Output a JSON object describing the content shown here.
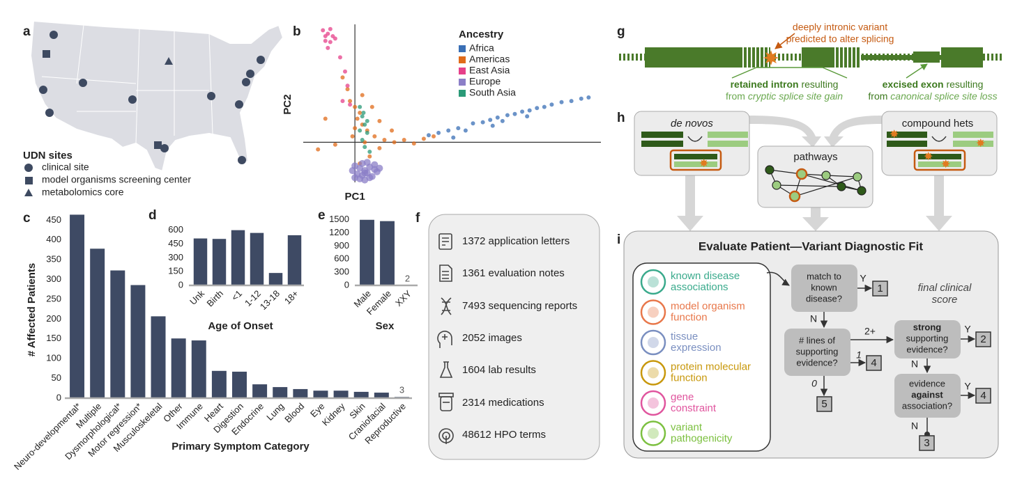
{
  "panels": [
    "a",
    "b",
    "c",
    "d",
    "e",
    "f",
    "g",
    "h",
    "i"
  ],
  "map": {
    "legend_title": "UDN sites",
    "legend": [
      "clinical site",
      "model organisms screening center",
      "metabolomics core"
    ]
  },
  "chart_data": [
    {
      "type": "scatter",
      "x_label": "PC1",
      "y_label": "PC2",
      "legend_title": "Ancestry",
      "xlim": [
        -0.21,
        1.0
      ],
      "ylim": [
        -0.34,
        1.0
      ],
      "series": [
        {
          "name": "Africa",
          "color": "#3a6fb5",
          "x": [
            0.3,
            0.34,
            0.38,
            0.4,
            0.42,
            0.45,
            0.48,
            0.52,
            0.55,
            0.56,
            0.58,
            0.6,
            0.62,
            0.65,
            0.68,
            0.7,
            0.71,
            0.74,
            0.77,
            0.8,
            0.84,
            0.88,
            0.92,
            0.95
          ],
          "values": [
            0.06,
            0.08,
            0.1,
            0.04,
            0.12,
            0.1,
            0.16,
            0.17,
            0.19,
            0.14,
            0.21,
            0.18,
            0.23,
            0.24,
            0.26,
            0.22,
            0.27,
            0.29,
            0.3,
            0.32,
            0.34,
            0.35,
            0.37,
            0.38
          ]
        },
        {
          "name": "Americas",
          "color": "#e06b1a",
          "x": [
            -0.05,
            -0.03,
            -0.02,
            0.0,
            0.02,
            0.01,
            0.03,
            0.05,
            -0.01,
            0.04,
            0.08,
            0.12,
            0.16,
            0.2,
            0.24,
            0.28,
            0.1,
            0.06,
            0.02,
            -0.08,
            -0.12,
            0.07,
            0.1,
            0.15,
            0.0,
            0.03,
            0.32,
            -0.15
          ],
          "values": [
            0.55,
            0.45,
            0.35,
            0.3,
            0.25,
            0.2,
            0.15,
            0.1,
            0.05,
            0.0,
            0.05,
            0.02,
            0.0,
            0.02,
            -0.01,
            0.03,
            -0.05,
            -0.12,
            -0.18,
            -0.02,
            0.2,
            0.3,
            0.18,
            0.1,
            0.12,
            0.4,
            0.05,
            -0.06
          ]
        },
        {
          "name": "East Asia",
          "color": "#e6408a",
          "x": [
            -0.13,
            -0.12,
            -0.11,
            -0.1,
            -0.09,
            -0.12,
            -0.1,
            -0.08,
            -0.11,
            -0.06,
            -0.04,
            -0.03,
            -0.05,
            -0.02
          ],
          "values": [
            0.95,
            0.9,
            0.92,
            0.96,
            0.9,
            0.86,
            0.85,
            0.88,
            0.8,
            0.72,
            0.6,
            0.48,
            0.35,
            0.32
          ]
        },
        {
          "name": "Europe",
          "color": "#8b7fc7",
          "x": [
            0.0,
            0.02,
            0.04,
            0.06,
            0.08,
            0.01,
            0.03,
            0.05,
            0.07,
            0.09,
            0.02,
            0.04,
            0.06,
            0.03,
            0.05,
            0.0,
            0.08,
            0.1,
            -0.01,
            0.04
          ],
          "values": [
            -0.2,
            -0.22,
            -0.24,
            -0.21,
            -0.23,
            -0.27,
            -0.28,
            -0.26,
            -0.29,
            -0.25,
            -0.31,
            -0.32,
            -0.3,
            -0.18,
            -0.17,
            -0.3,
            -0.19,
            -0.22,
            -0.24,
            -0.26
          ]
        },
        {
          "name": "South Asia",
          "color": "#2b9a78",
          "x": [
            0.02,
            0.03,
            0.04,
            0.05,
            0.03,
            0.04,
            0.02,
            0.05,
            0.06,
            0.035
          ],
          "values": [
            0.3,
            0.22,
            0.15,
            0.08,
            0.02,
            -0.04,
            0.1,
            0.18,
            -0.08,
            0.25
          ]
        }
      ]
    },
    {
      "type": "bar",
      "x_label": "Primary Symptom Category",
      "y_label": "# Affected Patients",
      "color": "#3e4a64",
      "categories": [
        "Neuro-developmental*",
        "Multiple",
        "Dysmorphological*",
        "Motor regression*",
        "Musculoskeletal",
        "Other",
        "Immune",
        "Heart",
        "Digestion",
        "Endocrine",
        "Lung",
        "Blood",
        "Eye",
        "Kidney",
        "Skin",
        "Craniofacial",
        "Reproductive"
      ],
      "values": [
        464,
        378,
        323,
        286,
        207,
        151,
        146,
        69,
        67,
        35,
        28,
        23,
        19,
        19,
        16,
        14,
        3
      ],
      "value_labels": [
        null,
        null,
        null,
        null,
        null,
        null,
        null,
        null,
        null,
        null,
        null,
        null,
        null,
        null,
        null,
        null,
        "3"
      ],
      "ylim": [
        0,
        470
      ],
      "yticks": [
        0,
        50,
        100,
        150,
        200,
        250,
        300,
        350,
        400,
        450
      ]
    },
    {
      "type": "bar",
      "x_label": "Age of Onset",
      "color": "#3e4a64",
      "categories": [
        "Unk",
        "Birth",
        "<1",
        "1-12",
        "13-18",
        "18+"
      ],
      "values": [
        510,
        505,
        600,
        570,
        135,
        545
      ],
      "ylim": [
        0,
        620
      ],
      "yticks": [
        0,
        150,
        300,
        450,
        600
      ]
    },
    {
      "type": "bar",
      "x_label": "Sex",
      "color": "#3e4a64",
      "categories": [
        "Male",
        "Female",
        "XXY"
      ],
      "values": [
        1500,
        1470,
        2
      ],
      "value_labels": [
        null,
        null,
        "2"
      ],
      "ylim": [
        0,
        1560
      ],
      "yticks": [
        0,
        300,
        600,
        900,
        1200,
        1500
      ]
    }
  ],
  "records": [
    "1372 application letters",
    "1361 evaluation notes",
    "7493 sequencing reports",
    "2052 images",
    "1604 lab results",
    "2314 medications",
    "48612 HPO terms"
  ],
  "splicing": {
    "variant_note": [
      "deeply intronic variant",
      "predicted to alter splicing"
    ],
    "retained": {
      "bold": "retained intron",
      "rest": "resulting",
      "prefix": "from",
      "italic": "cryptic splice site gain"
    },
    "excised": {
      "bold": "excised exon",
      "rest": "resulting",
      "prefix": "from",
      "italic": "canonical splice site loss"
    }
  },
  "sources": {
    "de_novo": "de novos",
    "pathways": "pathways",
    "compound": "compound hets"
  },
  "evaluation": {
    "title": "Evaluate Patient—Variant Diagnostic Fit",
    "evidence": [
      [
        "known disease",
        "associations"
      ],
      [
        "model organism",
        "function"
      ],
      [
        "tissue",
        "expression"
      ],
      [
        "protein molecular",
        "function"
      ],
      [
        "gene",
        "constraint"
      ],
      [
        "variant",
        "pathogenicity"
      ]
    ],
    "nodes": [
      [
        "match to",
        "known",
        "disease?"
      ],
      [
        "# lines of",
        "supporting",
        "evidence?"
      ],
      [
        "strong",
        "supporting",
        "evidence?"
      ],
      [
        "evidence",
        "against",
        "association?"
      ]
    ],
    "scores": [
      1,
      4,
      5,
      2,
      4,
      3
    ],
    "edges": [
      "Y",
      "N",
      "2+",
      "1",
      "0",
      "Y",
      "N",
      "Y",
      "N"
    ],
    "final": [
      "final clinical",
      "score"
    ]
  }
}
